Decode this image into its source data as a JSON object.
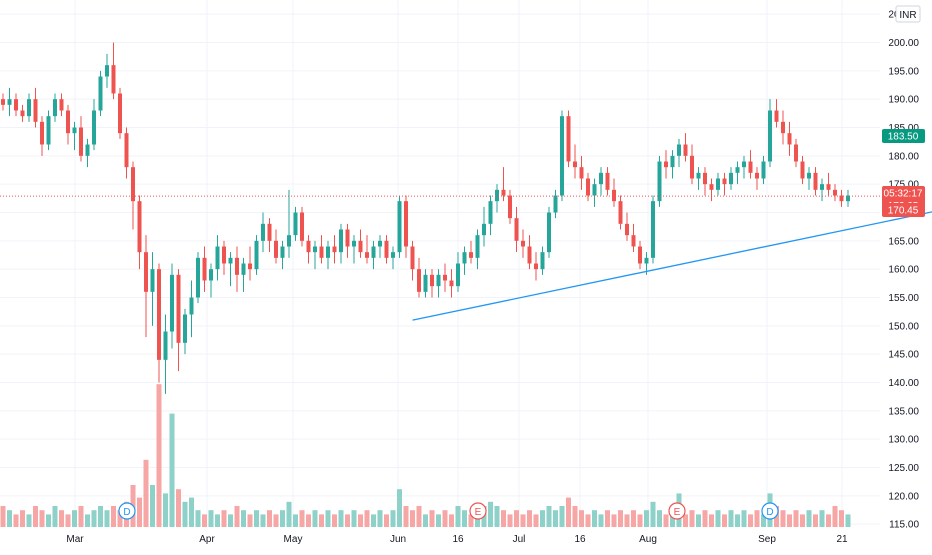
{
  "currency": "INR",
  "colors": {
    "up": "#26a69a",
    "down": "#ef5350",
    "up_volume": "#8ed1c9",
    "down_volume": "#f6a6a4",
    "trendline": "#2196f3",
    "target_zone": "#cdece7",
    "stop_zone": "#f9d6d6",
    "grid": "#f0f3fa",
    "text": "#131722"
  },
  "price_badges": {
    "target": "183.50",
    "last": "172.90",
    "entry": "172.65",
    "countdown": "05:32:17",
    "stop": "170.45"
  },
  "event_markers": [
    "D",
    "E",
    "E",
    "D"
  ],
  "chart_data": {
    "type": "candlestick",
    "y_axis": {
      "ticks": [
        "115.00",
        "120.00",
        "125.00",
        "130.00",
        "135.00",
        "140.00",
        "145.00",
        "150.00",
        "155.00",
        "160.00",
        "165.00",
        "170.00",
        "175.00",
        "180.00",
        "185.00",
        "190.00",
        "195.00",
        "200.00",
        "205.00"
      ],
      "range": [
        114.5,
        207.5
      ],
      "side": "right"
    },
    "x_axis": {
      "labels": [
        "Mar",
        "Apr",
        "May",
        "Jun",
        "16",
        "Jul",
        "16",
        "Aug",
        "Sep",
        "21"
      ]
    },
    "grid": true,
    "last_price": 172.9,
    "trendline": {
      "start": {
        "bar": 63,
        "price": 151.0
      },
      "end": {
        "bar": 155,
        "price": 173.0
      }
    },
    "position": {
      "entry": 172.65,
      "target": 183.5,
      "stop": 170.45,
      "start_bar": 150
    },
    "ohlcv": [
      [
        190,
        191,
        188,
        189,
        5
      ],
      [
        189,
        192,
        187,
        190,
        4
      ],
      [
        190,
        191,
        187,
        188,
        3
      ],
      [
        188,
        189,
        186,
        187,
        4
      ],
      [
        187,
        191,
        186,
        190,
        3
      ],
      [
        190,
        192,
        185,
        186,
        5
      ],
      [
        186,
        187,
        180,
        182,
        4
      ],
      [
        182,
        188,
        181,
        187,
        3
      ],
      [
        187,
        191,
        186,
        190,
        5
      ],
      [
        190,
        191,
        187,
        188,
        4
      ],
      [
        188,
        189,
        182,
        184,
        3
      ],
      [
        184,
        186,
        181,
        185,
        4
      ],
      [
        185,
        187,
        179,
        180,
        5
      ],
      [
        180,
        183,
        178,
        182,
        3
      ],
      [
        182,
        190,
        181,
        188,
        4
      ],
      [
        188,
        195,
        187,
        194,
        5
      ],
      [
        194,
        198,
        192,
        196,
        4
      ],
      [
        196,
        200,
        190,
        191,
        5
      ],
      [
        191,
        192,
        183,
        184,
        4
      ],
      [
        184,
        185,
        176,
        178,
        6
      ],
      [
        178,
        179,
        167,
        172,
        10
      ],
      [
        172,
        173,
        160,
        163,
        7
      ],
      [
        163,
        166,
        148,
        156,
        16
      ],
      [
        156,
        163,
        150,
        160,
        10
      ],
      [
        160,
        161,
        140,
        144,
        34
      ],
      [
        144,
        152,
        138,
        149,
        8
      ],
      [
        149,
        161,
        146,
        159,
        27
      ],
      [
        159,
        160,
        142,
        147,
        9
      ],
      [
        147,
        153,
        145,
        152,
        6
      ],
      [
        152,
        158,
        148,
        155,
        7
      ],
      [
        155,
        163,
        154,
        162,
        4
      ],
      [
        162,
        164,
        156,
        158,
        3
      ],
      [
        158,
        161,
        155,
        160,
        4
      ],
      [
        160,
        166,
        158,
        164,
        3
      ],
      [
        164,
        165,
        159,
        161,
        4
      ],
      [
        161,
        163,
        157,
        162,
        3
      ],
      [
        162,
        164,
        156,
        159,
        5
      ],
      [
        159,
        162,
        156,
        161,
        4
      ],
      [
        161,
        164,
        158,
        160,
        3
      ],
      [
        160,
        166,
        159,
        165,
        4
      ],
      [
        165,
        170,
        163,
        168,
        3
      ],
      [
        168,
        169,
        163,
        165,
        4
      ],
      [
        165,
        167,
        161,
        162,
        3
      ],
      [
        162,
        165,
        160,
        164,
        4
      ],
      [
        164,
        174,
        162,
        166,
        6
      ],
      [
        166,
        171,
        165,
        170,
        3
      ],
      [
        170,
        171,
        164,
        165,
        4
      ],
      [
        165,
        166,
        161,
        163,
        3
      ],
      [
        163,
        165,
        160,
        164,
        4
      ],
      [
        164,
        166,
        161,
        162,
        3
      ],
      [
        162,
        165,
        160,
        164,
        4
      ],
      [
        164,
        166,
        161,
        163,
        3
      ],
      [
        163,
        168,
        161,
        167,
        4
      ],
      [
        167,
        168,
        162,
        164,
        3
      ],
      [
        164,
        166,
        161,
        165,
        4
      ],
      [
        165,
        167,
        162,
        163,
        3
      ],
      [
        163,
        166,
        161,
        162,
        4
      ],
      [
        162,
        165,
        160,
        164,
        3
      ],
      [
        164,
        166,
        162,
        165,
        4
      ],
      [
        165,
        166,
        161,
        162,
        3
      ],
      [
        162,
        164,
        160,
        163,
        4
      ],
      [
        163,
        173,
        162,
        172,
        9
      ],
      [
        172,
        173,
        162,
        164,
        5
      ],
      [
        164,
        165,
        158,
        160,
        4
      ],
      [
        160,
        162,
        155,
        156,
        5
      ],
      [
        156,
        160,
        155,
        159,
        3
      ],
      [
        159,
        160,
        155,
        157,
        4
      ],
      [
        157,
        160,
        155,
        159,
        3
      ],
      [
        159,
        161,
        156,
        158,
        4
      ],
      [
        158,
        160,
        155,
        157,
        3
      ],
      [
        157,
        163,
        156,
        161,
        5
      ],
      [
        161,
        164,
        159,
        163,
        4
      ],
      [
        163,
        165,
        161,
        162,
        3
      ],
      [
        162,
        167,
        160,
        166,
        4
      ],
      [
        166,
        171,
        164,
        168,
        5
      ],
      [
        168,
        173,
        166,
        172,
        6
      ],
      [
        172,
        175,
        170,
        174,
        5
      ],
      [
        174,
        178,
        172,
        173,
        4
      ],
      [
        173,
        174,
        168,
        169,
        3
      ],
      [
        169,
        171,
        163,
        165,
        4
      ],
      [
        165,
        167,
        162,
        164,
        3
      ],
      [
        164,
        166,
        160,
        161,
        4
      ],
      [
        161,
        163,
        158,
        160,
        3
      ],
      [
        160,
        164,
        159,
        163,
        4
      ],
      [
        163,
        171,
        162,
        170,
        5
      ],
      [
        170,
        174,
        169,
        173,
        4
      ],
      [
        173,
        188,
        172,
        187,
        5
      ],
      [
        187,
        188,
        178,
        179,
        7
      ],
      [
        179,
        182,
        176,
        178,
        5
      ],
      [
        178,
        180,
        174,
        176,
        4
      ],
      [
        176,
        177,
        172,
        173,
        3
      ],
      [
        173,
        176,
        171,
        175,
        4
      ],
      [
        175,
        178,
        173,
        177,
        3
      ],
      [
        177,
        178,
        173,
        174,
        4
      ],
      [
        174,
        176,
        171,
        172,
        3
      ],
      [
        172,
        173,
        167,
        168,
        4
      ],
      [
        168,
        170,
        165,
        166,
        3
      ],
      [
        166,
        168,
        163,
        164,
        4
      ],
      [
        164,
        165,
        160,
        161,
        3
      ],
      [
        161,
        163,
        159,
        162,
        4
      ],
      [
        162,
        173,
        161,
        172,
        6
      ],
      [
        172,
        180,
        171,
        179,
        4
      ],
      [
        179,
        181,
        176,
        178,
        3
      ],
      [
        178,
        181,
        176,
        180,
        5
      ],
      [
        180,
        183,
        178,
        182,
        8
      ],
      [
        182,
        184,
        179,
        180,
        3
      ],
      [
        180,
        182,
        175,
        176,
        4
      ],
      [
        176,
        178,
        174,
        177,
        3
      ],
      [
        177,
        178,
        173,
        175,
        4
      ],
      [
        175,
        176,
        172,
        174,
        3
      ],
      [
        174,
        177,
        173,
        176,
        4
      ],
      [
        176,
        177,
        173,
        175,
        3
      ],
      [
        175,
        178,
        174,
        177,
        4
      ],
      [
        177,
        179,
        175,
        178,
        3
      ],
      [
        178,
        180,
        176,
        179,
        4
      ],
      [
        179,
        181,
        176,
        177,
        3
      ],
      [
        177,
        178,
        174,
        176,
        4
      ],
      [
        176,
        180,
        175,
        179,
        3
      ],
      [
        179,
        190,
        178,
        188,
        8
      ],
      [
        188,
        190,
        185,
        186,
        5
      ],
      [
        186,
        188,
        182,
        184,
        4
      ],
      [
        184,
        186,
        180,
        182,
        3
      ],
      [
        182,
        183,
        178,
        179,
        4
      ],
      [
        179,
        180,
        175,
        176,
        3
      ],
      [
        176,
        178,
        174,
        177,
        4
      ],
      [
        177,
        178,
        173,
        174,
        3
      ],
      [
        174,
        176,
        172,
        175,
        4
      ],
      [
        175,
        177,
        173,
        174,
        3
      ],
      [
        174,
        175,
        172,
        173,
        5
      ],
      [
        173,
        174,
        171,
        172,
        4
      ],
      [
        172,
        174,
        171,
        173,
        3
      ]
    ]
  }
}
